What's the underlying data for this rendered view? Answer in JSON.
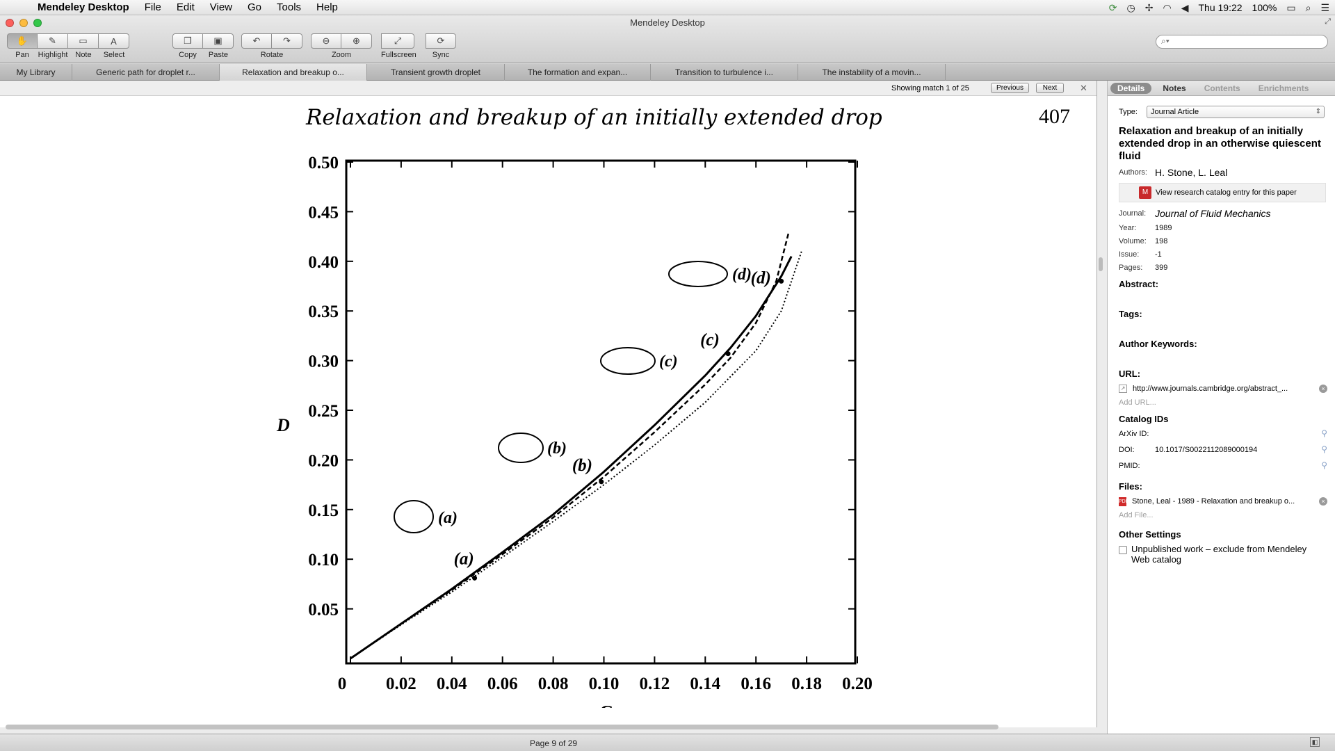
{
  "menubar": {
    "app_name": "Mendeley Desktop",
    "menus": [
      "File",
      "Edit",
      "View",
      "Go",
      "Tools",
      "Help"
    ],
    "clock": "Thu 19:22",
    "battery": "100%"
  },
  "window": {
    "title": "Mendeley Desktop"
  },
  "toolbar": {
    "tools": [
      "Pan",
      "Highlight",
      "Note",
      "Select"
    ],
    "edit": [
      "Copy",
      "Paste"
    ],
    "rotate_label": "Rotate",
    "zoom_label": "Zoom",
    "fullscreen_label": "Fullscreen",
    "sync_label": "Sync",
    "search_placeholder": ""
  },
  "tabs": [
    "My Library",
    "Generic path for droplet r...",
    "Relaxation and breakup o...",
    "Transient growth droplet",
    "The formation and expan...",
    "Transition to turbulence i...",
    "The instability of a movin..."
  ],
  "find_bar": {
    "status": "Showing match 1 of 25",
    "prev": "Previous",
    "next": "Next"
  },
  "pdf": {
    "header": "Relaxation and breakup of an initially extended drop",
    "page_number": "407",
    "y_axis_label": "D",
    "x_axis_label": "C",
    "y_ticks": [
      "0.50",
      "0.45",
      "0.40",
      "0.35",
      "0.30",
      "0.25",
      "0.20",
      "0.15",
      "0.10",
      "0.05"
    ],
    "x_ticks": [
      "0",
      "0.02",
      "0.04",
      "0.06",
      "0.08",
      "0.10",
      "0.12",
      "0.14",
      "0.16",
      "0.18",
      "0.20"
    ],
    "point_labels": [
      "(a)",
      "(b)",
      "(c)",
      "(d)"
    ]
  },
  "chart_data": {
    "type": "line",
    "xlabel": "C",
    "ylabel": "D",
    "xlim": [
      0,
      0.2
    ],
    "ylim": [
      0,
      0.5
    ],
    "series": [
      {
        "style": "solid",
        "x": [
          0,
          0.02,
          0.04,
          0.06,
          0.08,
          0.1,
          0.12,
          0.14,
          0.15,
          0.16,
          0.17,
          0.174
        ],
        "y": [
          0,
          0.035,
          0.07,
          0.107,
          0.145,
          0.188,
          0.235,
          0.285,
          0.313,
          0.345,
          0.385,
          0.405
        ]
      },
      {
        "style": "dashed",
        "x": [
          0,
          0.02,
          0.04,
          0.06,
          0.08,
          0.1,
          0.12,
          0.14,
          0.15,
          0.16,
          0.168,
          0.173
        ],
        "y": [
          0,
          0.035,
          0.069,
          0.105,
          0.142,
          0.183,
          0.228,
          0.276,
          0.303,
          0.338,
          0.38,
          0.43
        ]
      },
      {
        "style": "dotted",
        "x": [
          0,
          0.02,
          0.04,
          0.06,
          0.08,
          0.1,
          0.12,
          0.14,
          0.16,
          0.17,
          0.178
        ],
        "y": [
          0,
          0.034,
          0.067,
          0.102,
          0.138,
          0.175,
          0.215,
          0.258,
          0.31,
          0.35,
          0.41
        ]
      }
    ],
    "markers": [
      {
        "label": "(a)",
        "x": 0.049,
        "y": 0.081
      },
      {
        "label": "(b)",
        "x": 0.099,
        "y": 0.178
      },
      {
        "label": "(c)",
        "x": 0.149,
        "y": 0.307
      },
      {
        "label": "(d)",
        "x": 0.17,
        "y": 0.38
      }
    ]
  },
  "status": {
    "page": "Page 9 of 29"
  },
  "details": {
    "tabs": [
      "Details",
      "Notes",
      "Contents",
      "Enrichments"
    ],
    "type_label": "Type:",
    "type_value": "Journal Article",
    "title": "Relaxation and breakup of an initially extended drop in an otherwise quiescent fluid",
    "authors_label": "Authors:",
    "authors": "H. Stone, L. Leal",
    "catalog_link": "View research catalog entry for this paper",
    "journal_label": "Journal:",
    "journal": "Journal of Fluid Mechanics",
    "year_label": "Year:",
    "year": "1989",
    "volume_label": "Volume:",
    "volume": "198",
    "issue_label": "Issue:",
    "issue": "-1",
    "pages_label": "Pages:",
    "pages": "399",
    "abstract_label": "Abstract:",
    "tags_label": "Tags:",
    "keywords_label": "Author Keywords:",
    "url_label": "URL:",
    "url": "http://www.journals.cambridge.org/abstract_...",
    "add_url": "Add URL...",
    "catalog_ids_label": "Catalog IDs",
    "arxiv_label": "ArXiv ID:",
    "doi_label": "DOI:",
    "doi": "10.1017/S0022112089000194",
    "pmid_label": "PMID:",
    "files_label": "Files:",
    "file": "Stone, Leal - 1989 - Relaxation and breakup o...",
    "add_file": "Add File...",
    "other_settings_label": "Other Settings",
    "unpublished": "Unpublished work – exclude from Mendeley Web catalog"
  }
}
